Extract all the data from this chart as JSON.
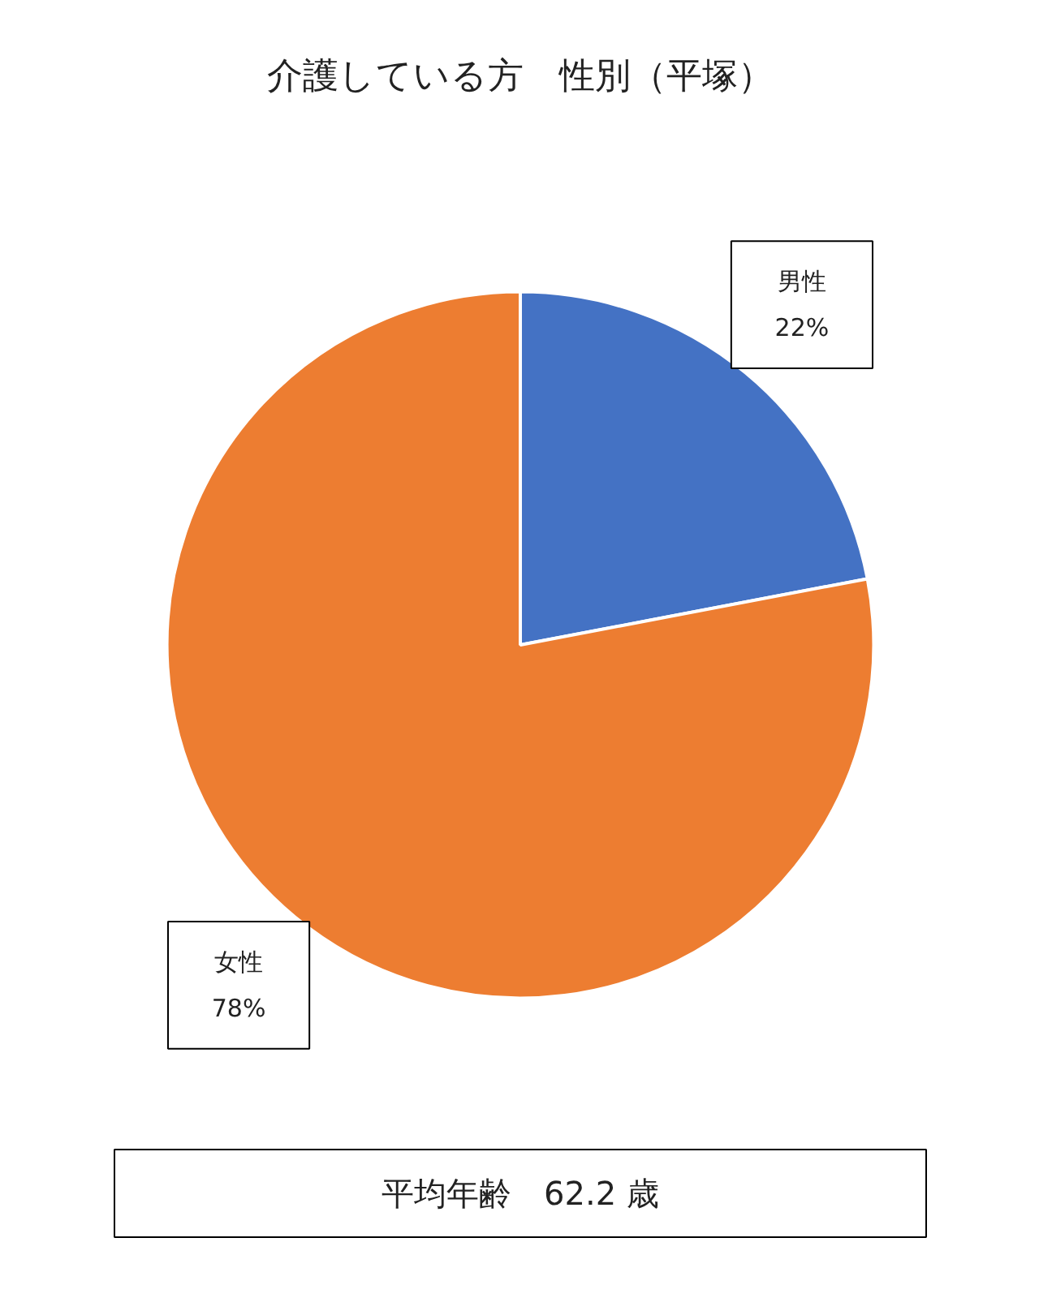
{
  "chart_data": {
    "type": "pie",
    "title": "介護している方　性別（平塚）",
    "categories": [
      "男性",
      "女性"
    ],
    "values": [
      22,
      78
    ],
    "value_labels": [
      "22%",
      "78%"
    ],
    "colors": [
      "#4472c4",
      "#ed7d31"
    ],
    "annotations": [
      "平均年齢　62.2 歳"
    ]
  }
}
